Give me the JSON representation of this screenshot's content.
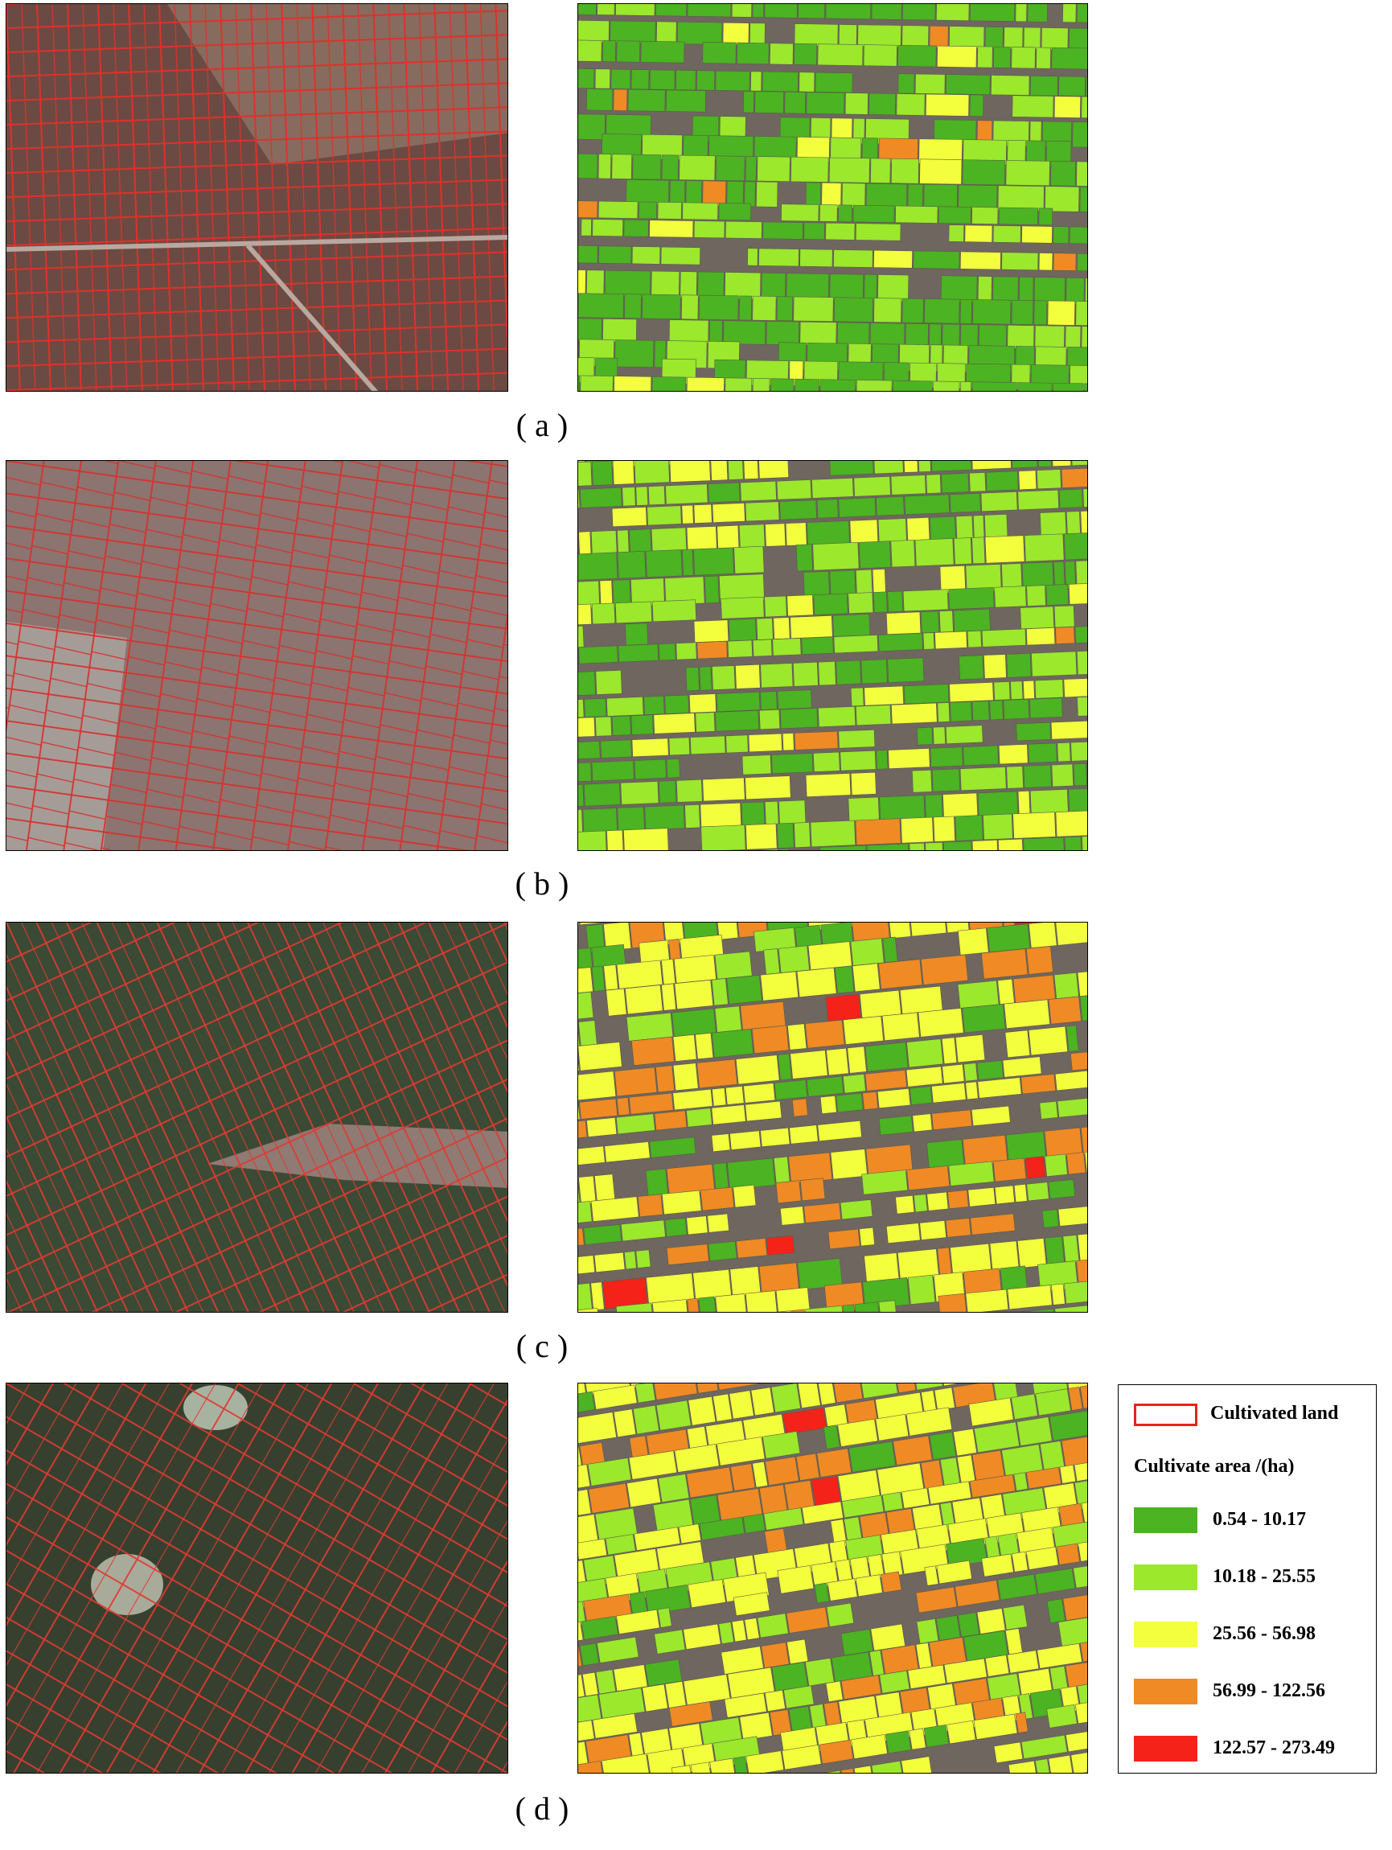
{
  "panels": [
    {
      "label": "( a )"
    },
    {
      "label": "( b )"
    },
    {
      "label": "( c )"
    },
    {
      "label": "( d )"
    }
  ],
  "legend": {
    "outline_item": "Cultivated land",
    "title": "Cultivate area /(ha)",
    "items": [
      {
        "label": "0.54 - 10.17",
        "color": "#4cb322"
      },
      {
        "label": "10.18 - 25.55",
        "color": "#9be82c"
      },
      {
        "label": "25.56 - 56.98",
        "color": "#f3ff3c"
      },
      {
        "label": "56.99 - 122.56",
        "color": "#f08a24"
      },
      {
        "label": "122.57 - 273.49",
        "color": "#f5221a"
      }
    ]
  }
}
